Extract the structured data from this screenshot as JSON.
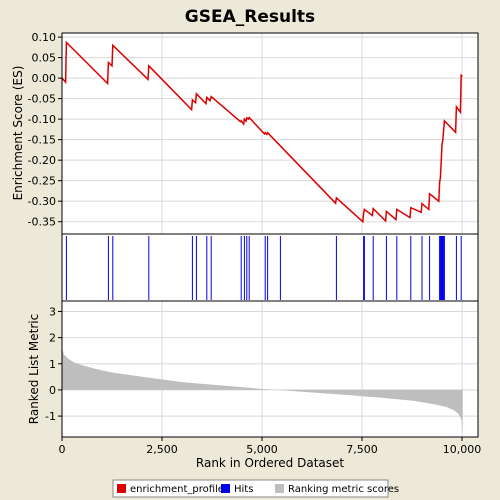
{
  "chart_data": {
    "type": "line",
    "title": "GSEA_Results",
    "xlabel": "Rank in Ordered Dataset",
    "xlim": [
      0,
      10400
    ],
    "x_ticks": [
      0,
      2500,
      5000,
      7500,
      10000
    ],
    "x_tick_labels": [
      "0",
      "2,500",
      "5,000",
      "7,500",
      "10,000"
    ],
    "es_panel": {
      "ylabel": "Enrichment Score (ES)",
      "ylim": [
        -0.38,
        0.11
      ],
      "y_ticks": [
        0.1,
        0.05,
        0.0,
        -0.05,
        -0.1,
        -0.15,
        -0.2,
        -0.25,
        -0.3,
        -0.35
      ],
      "y_tick_labels": [
        "0.10",
        "0.05",
        "0.00",
        "-0.05",
        "-0.10",
        "-0.15",
        "-0.20",
        "-0.25",
        "-0.30",
        "-0.35"
      ],
      "grid": true,
      "series": [
        {
          "name": "enrichment_profile",
          "color": "#dd0000",
          "points": [
            [
              0,
              0.0
            ],
            [
              90,
              -0.01
            ],
            [
              110,
              0.087
            ],
            [
              1140,
              -0.013
            ],
            [
              1160,
              0.038
            ],
            [
              1250,
              0.03
            ],
            [
              1270,
              0.08
            ],
            [
              2150,
              -0.003
            ],
            [
              2170,
              0.03
            ],
            [
              3240,
              -0.077
            ],
            [
              3260,
              -0.053
            ],
            [
              3340,
              -0.06
            ],
            [
              3360,
              -0.038
            ],
            [
              3600,
              -0.062
            ],
            [
              3620,
              -0.047
            ],
            [
              3700,
              -0.055
            ],
            [
              3730,
              -0.045
            ],
            [
              4460,
              -0.106
            ],
            [
              4480,
              -0.104
            ],
            [
              4540,
              -0.112
            ],
            [
              4560,
              -0.1
            ],
            [
              4600,
              -0.105
            ],
            [
              4620,
              -0.097
            ],
            [
              4660,
              -0.1
            ],
            [
              4680,
              -0.096
            ],
            [
              5060,
              -0.136
            ],
            [
              5080,
              -0.133
            ],
            [
              5120,
              -0.137
            ],
            [
              5140,
              -0.133
            ],
            [
              6840,
              -0.305
            ],
            [
              6860,
              -0.292
            ],
            [
              7520,
              -0.35
            ],
            [
              7540,
              -0.33
            ],
            [
              7560,
              -0.32
            ],
            [
              7760,
              -0.335
            ],
            [
              7780,
              -0.318
            ],
            [
              8090,
              -0.348
            ],
            [
              8110,
              -0.325
            ],
            [
              8350,
              -0.345
            ],
            [
              8370,
              -0.32
            ],
            [
              8700,
              -0.34
            ],
            [
              8720,
              -0.316
            ],
            [
              8980,
              -0.327
            ],
            [
              9000,
              -0.306
            ],
            [
              9170,
              -0.32
            ],
            [
              9190,
              -0.282
            ],
            [
              9420,
              -0.3
            ],
            [
              9440,
              -0.255
            ],
            [
              9460,
              -0.242
            ],
            [
              9480,
              -0.205
            ],
            [
              9500,
              -0.16
            ],
            [
              9520,
              -0.152
            ],
            [
              9540,
              -0.128
            ],
            [
              9560,
              -0.104
            ],
            [
              9840,
              -0.132
            ],
            [
              9860,
              -0.07
            ],
            [
              9960,
              -0.083
            ],
            [
              9980,
              0.007
            ],
            [
              10010,
              0.004
            ]
          ]
        }
      ]
    },
    "hits": {
      "name": "Hits",
      "color": "#0000ee",
      "positions": [
        110,
        1160,
        1270,
        2170,
        3260,
        3360,
        3620,
        3730,
        4480,
        4560,
        4620,
        4680,
        5080,
        5140,
        5460,
        6860,
        7540,
        7560,
        7780,
        8110,
        8370,
        8720,
        9000,
        9190,
        9440,
        9460,
        9480,
        9500,
        9520,
        9540,
        9560,
        9860,
        9980
      ]
    },
    "ranked_metric": {
      "name": "Ranking metric scores",
      "color": "#bebebe",
      "ylabel": "Ranked List Metric",
      "ylim": [
        -1.8,
        3.4
      ],
      "y_ticks": [
        3,
        2,
        1,
        0,
        -1
      ],
      "y_tick_labels": [
        "3",
        "2",
        "1",
        "0",
        "-1"
      ],
      "points": [
        [
          0,
          1.6
        ],
        [
          50,
          1.35
        ],
        [
          150,
          1.2
        ],
        [
          300,
          1.05
        ],
        [
          500,
          0.95
        ],
        [
          800,
          0.82
        ],
        [
          1200,
          0.68
        ],
        [
          2000,
          0.5
        ],
        [
          3000,
          0.3
        ],
        [
          4000,
          0.17
        ],
        [
          5000,
          0.04
        ],
        [
          6000,
          -0.07
        ],
        [
          7000,
          -0.18
        ],
        [
          8000,
          -0.3
        ],
        [
          8800,
          -0.42
        ],
        [
          9300,
          -0.55
        ],
        [
          9600,
          -0.65
        ],
        [
          9800,
          -0.78
        ],
        [
          9900,
          -0.9
        ],
        [
          9960,
          -1.05
        ],
        [
          10000,
          -1.2
        ],
        [
          10015,
          -1.5
        ],
        [
          10020,
          -1.62
        ]
      ]
    },
    "legend": {
      "placement": "bottom",
      "entries": [
        {
          "label": "enrichment_profile",
          "color": "#dd0000"
        },
        {
          "label": "Hits",
          "color": "#0000ee"
        },
        {
          "label": "Ranking metric scores",
          "color": "#bebebe"
        }
      ]
    }
  }
}
